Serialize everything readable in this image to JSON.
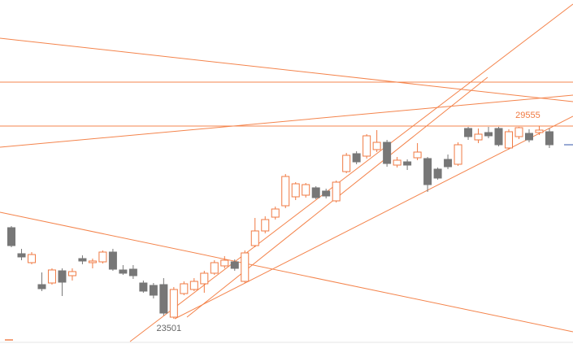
{
  "chart_data": {
    "type": "candlestick",
    "up_color": "#f07a43",
    "down_color": "#777777",
    "ylim": [
      22787,
      33514
    ],
    "annotations": [
      "29555",
      "23501"
    ],
    "open": [
      26363,
      25546,
      25265,
      24575,
      24626,
      25009,
      24856,
      25392,
      25265,
      25290,
      25597,
      25035,
      25060,
      24626,
      24550,
      24575,
      23553,
      24294,
      24422,
      24601,
      24933,
      25163,
      25290,
      24677,
      25801,
      26261,
      26694,
      27052,
      27333,
      27384,
      27615,
      27513,
      27206,
      28125,
      28687,
      28610,
      28815,
      29044,
      28329,
      28431,
      28559,
      28534,
      28202,
      28508,
      28355,
      29479,
      29121,
      29351,
      29479,
      28866,
      29223,
      29326,
      29351,
      29377
    ],
    "high": [
      26414,
      25699,
      25597,
      24958,
      25086,
      25086,
      25086,
      25495,
      25392,
      25648,
      25699,
      25188,
      25188,
      24703,
      24626,
      24779,
      24499,
      24677,
      24779,
      25009,
      25341,
      25469,
      25367,
      25648,
      26669,
      26720,
      27027,
      28049,
      27793,
      27767,
      27666,
      27589,
      27844,
      28712,
      28764,
      29300,
      29428,
      29121,
      28585,
      28508,
      29019,
      28585,
      28253,
      28661,
      29044,
      29530,
      29479,
      29530,
      29530,
      29453,
      29530,
      29453,
      29555,
      29479
    ],
    "low": [
      25750,
      25341,
      25214,
      24371,
      24575,
      24218,
      24703,
      25214,
      25086,
      25239,
      25009,
      24882,
      24754,
      24320,
      24141,
      23605,
      23501,
      24243,
      24371,
      24320,
      24882,
      25086,
      25009,
      24626,
      25750,
      26184,
      26618,
      26976,
      27231,
      27308,
      27257,
      27282,
      27155,
      28074,
      28355,
      28534,
      28738,
      28278,
      28253,
      28176,
      28483,
      27487,
      27870,
      28202,
      28304,
      29121,
      29019,
      29172,
      28917,
      28815,
      29147,
      29044,
      29274,
      28866
    ],
    "close": [
      25801,
      25444,
      25520,
      24447,
      25035,
      24652,
      24984,
      25316,
      25316,
      25597,
      25060,
      24933,
      24856,
      24371,
      24243,
      23681,
      24422,
      24601,
      24677,
      24933,
      25265,
      25341,
      25086,
      25571,
      26261,
      26618,
      26950,
      27972,
      27742,
      27716,
      27308,
      27359,
      27793,
      28636,
      28431,
      29249,
      29044,
      28380,
      28483,
      28329,
      28738,
      27716,
      27921,
      28278,
      28968,
      29223,
      29300,
      29249,
      28968,
      29377,
      29504,
      29121,
      29428,
      28968
    ]
  }
}
